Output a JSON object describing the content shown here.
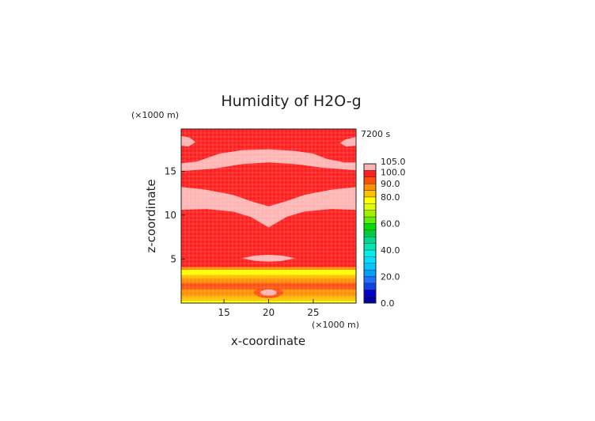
{
  "chart_data": {
    "type": "heatmap",
    "title": "Humidity of H2O-g",
    "time_label": "7200 s",
    "xlabel": "x-coordinate",
    "ylabel": "z-coordinate",
    "x_unit": "(×1000 m)",
    "z_unit": "(×1000 m)",
    "xlim": [
      10.2,
      29.8
    ],
    "ylim": [
      0,
      19.8
    ],
    "x_ticks": [
      15,
      20,
      25
    ],
    "y_ticks": [
      5,
      10,
      15
    ],
    "colorbar": {
      "min": 0,
      "max": 105,
      "tick_values": [
        0,
        20,
        40,
        60,
        80,
        90,
        100,
        105
      ],
      "tick_labels": [
        "0.0",
        "20.0",
        "40.0",
        "60.0",
        "80.0",
        "90.0",
        "100.0",
        "105.0"
      ],
      "bands": [
        {
          "from": 0,
          "to": 5,
          "color": "#0000a0"
        },
        {
          "from": 5,
          "to": 10,
          "color": "#0000c8"
        },
        {
          "from": 10,
          "to": 15,
          "color": "#1040e8"
        },
        {
          "from": 15,
          "to": 20,
          "color": "#2070ff"
        },
        {
          "from": 20,
          "to": 25,
          "color": "#00a0ff"
        },
        {
          "from": 25,
          "to": 30,
          "color": "#00c8ff"
        },
        {
          "from": 30,
          "to": 35,
          "color": "#00e0ff"
        },
        {
          "from": 35,
          "to": 40,
          "color": "#00f0e8"
        },
        {
          "from": 40,
          "to": 45,
          "color": "#00e8b0"
        },
        {
          "from": 45,
          "to": 50,
          "color": "#00d890"
        },
        {
          "from": 50,
          "to": 55,
          "color": "#00cc40"
        },
        {
          "from": 55,
          "to": 60,
          "color": "#00e000"
        },
        {
          "from": 60,
          "to": 65,
          "color": "#60f000"
        },
        {
          "from": 65,
          "to": 70,
          "color": "#a0f000"
        },
        {
          "from": 70,
          "to": 75,
          "color": "#e0ff00"
        },
        {
          "from": 75,
          "to": 80,
          "color": "#ffff00"
        },
        {
          "from": 80,
          "to": 85,
          "color": "#ffc000"
        },
        {
          "from": 85,
          "to": 90,
          "color": "#ff9000"
        },
        {
          "from": 90,
          "to": 95,
          "color": "#ff5010"
        },
        {
          "from": 95,
          "to": 100,
          "color": "#ff1f1f"
        },
        {
          "from": 100,
          "to": 105,
          "color": "#ffb4b4"
        }
      ]
    },
    "horizontal_bands": [
      {
        "z0": 0.0,
        "z1": 0.3,
        "color": "#ffff00"
      },
      {
        "z0": 0.3,
        "z1": 0.8,
        "color": "#ffc000"
      },
      {
        "z0": 0.8,
        "z1": 1.6,
        "color": "#ff9000"
      },
      {
        "z0": 1.6,
        "z1": 2.3,
        "color": "#ff5010"
      },
      {
        "z0": 2.3,
        "z1": 2.8,
        "color": "#ff9000"
      },
      {
        "z0": 2.8,
        "z1": 3.2,
        "color": "#ffc000"
      },
      {
        "z0": 3.2,
        "z1": 3.8,
        "color": "#ffff00"
      },
      {
        "z0": 3.8,
        "z1": 4.1,
        "color": "#ff9000"
      }
    ],
    "supersaturated_regions": [
      {
        "name": "top-left-lobe",
        "points": [
          [
            10.2,
            19.0
          ],
          [
            11.2,
            18.8
          ],
          [
            11.8,
            18.3
          ],
          [
            11.0,
            17.8
          ],
          [
            10.2,
            17.9
          ]
        ]
      },
      {
        "name": "top-right-lobe",
        "points": [
          [
            29.8,
            18.9
          ],
          [
            28.6,
            18.6
          ],
          [
            28.0,
            18.2
          ],
          [
            28.7,
            17.8
          ],
          [
            29.8,
            17.9
          ]
        ]
      },
      {
        "name": "upper-band",
        "points": [
          [
            10.2,
            15.9
          ],
          [
            12.0,
            16.1
          ],
          [
            14.5,
            17.0
          ],
          [
            17.0,
            17.4
          ],
          [
            20.0,
            17.5
          ],
          [
            23.0,
            17.3
          ],
          [
            25.0,
            17.0
          ],
          [
            26.5,
            16.4
          ],
          [
            28.5,
            16.0
          ],
          [
            29.8,
            16.0
          ],
          [
            29.8,
            15.1
          ],
          [
            26.0,
            15.4
          ],
          [
            23.0,
            15.8
          ],
          [
            20.0,
            16.0
          ],
          [
            17.0,
            15.8
          ],
          [
            14.0,
            15.3
          ],
          [
            10.2,
            15.0
          ]
        ]
      },
      {
        "name": "middle-chevron",
        "points": [
          [
            10.2,
            13.2
          ],
          [
            13.0,
            12.9
          ],
          [
            16.0,
            12.3
          ],
          [
            18.0,
            11.6
          ],
          [
            20.0,
            11.0
          ],
          [
            22.0,
            11.6
          ],
          [
            24.0,
            12.3
          ],
          [
            27.0,
            12.9
          ],
          [
            29.8,
            13.2
          ],
          [
            29.8,
            10.6
          ],
          [
            27.0,
            10.7
          ],
          [
            24.0,
            10.4
          ],
          [
            22.0,
            9.8
          ],
          [
            20.0,
            8.6
          ],
          [
            18.0,
            9.8
          ],
          [
            16.0,
            10.4
          ],
          [
            13.0,
            10.7
          ],
          [
            10.2,
            10.6
          ]
        ]
      },
      {
        "name": "lower-lens",
        "points": [
          [
            17.0,
            5.1
          ],
          [
            18.5,
            5.4
          ],
          [
            20.0,
            5.5
          ],
          [
            21.5,
            5.4
          ],
          [
            23.0,
            5.1
          ],
          [
            21.5,
            4.8
          ],
          [
            20.0,
            4.7
          ],
          [
            18.5,
            4.8
          ]
        ]
      }
    ],
    "saturated_islands": [
      {
        "name": "island-left",
        "cx": 16.6,
        "cz": 12.6,
        "rx": 0.4,
        "rz": 0.2
      },
      {
        "name": "island-center",
        "cx": 20.0,
        "cz": 11.7,
        "rx": 0.6,
        "rz": 0.4
      }
    ],
    "near_surface_feature": {
      "cx": 20.0,
      "cz": 1.2,
      "rx": 0.9,
      "rz": 0.9
    }
  }
}
